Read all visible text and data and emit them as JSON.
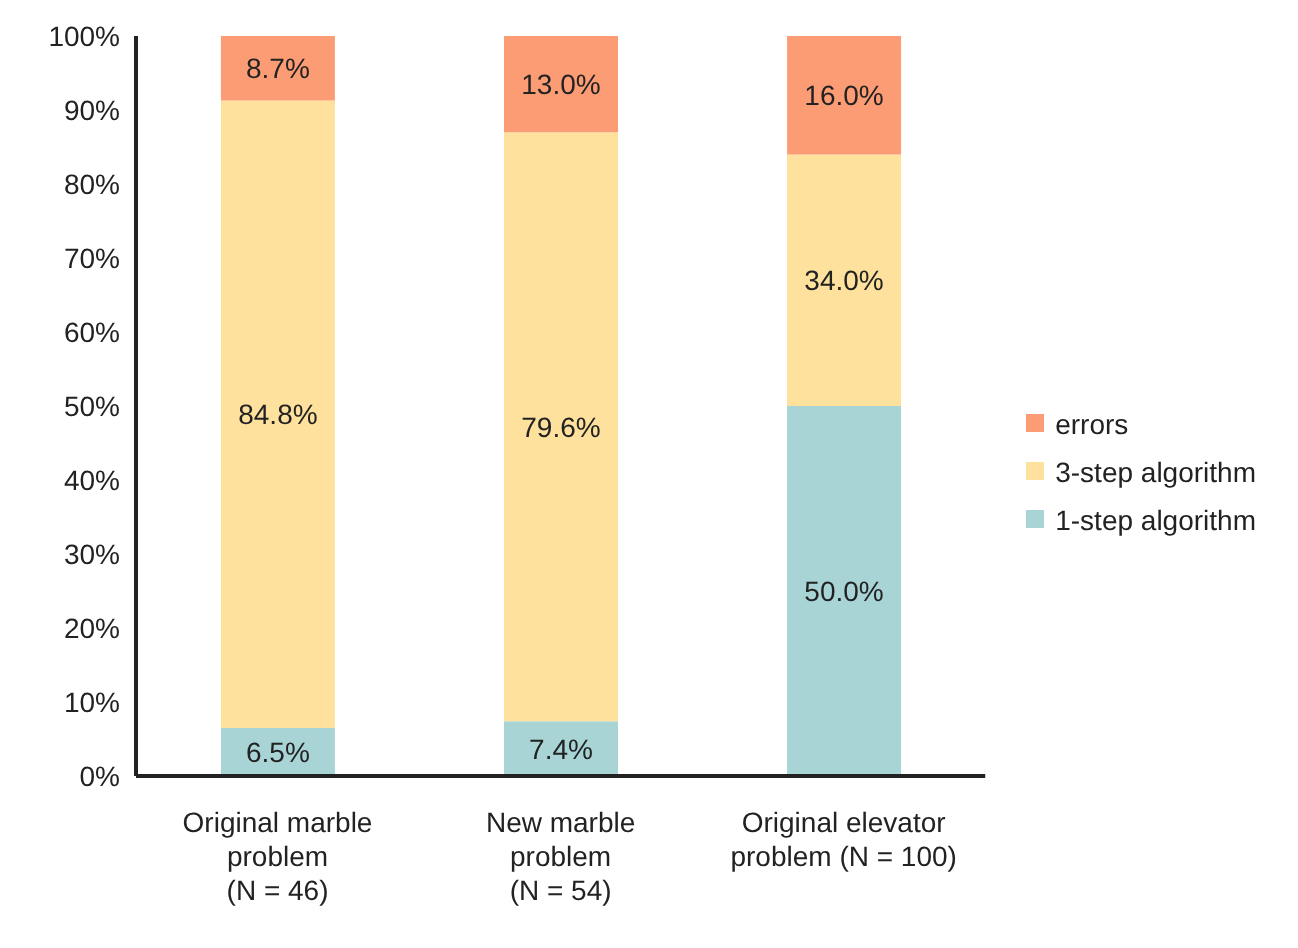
{
  "chart_data": {
    "type": "bar",
    "stacked": true,
    "categories": [
      "Original marble\nproblem\n(N = 46)",
      "New marble\nproblem\n(N = 54)",
      "Original elevator\nproblem (N = 100)"
    ],
    "series": [
      {
        "name": "1-step algorithm",
        "color": "#a8d4d6",
        "values": [
          6.5,
          7.4,
          50.0
        ],
        "value_labels": [
          "6.5%",
          "7.4%",
          "50.0%"
        ]
      },
      {
        "name": "3-step algorithm",
        "color": "#fde19c",
        "values": [
          84.8,
          79.6,
          34.0
        ],
        "value_labels": [
          "84.8%",
          "79.6%",
          "34.0%"
        ]
      },
      {
        "name": "errors",
        "color": "#fc9c74",
        "values": [
          8.7,
          13.0,
          16.0
        ],
        "value_labels": [
          "8.7%",
          "13.0%",
          "16.0%"
        ]
      }
    ],
    "ylim": [
      0,
      100
    ],
    "yticks": [
      {
        "value": 0,
        "label": "0%"
      },
      {
        "value": 10,
        "label": "10%"
      },
      {
        "value": 20,
        "label": "20%"
      },
      {
        "value": 30,
        "label": "30%"
      },
      {
        "value": 40,
        "label": "40%"
      },
      {
        "value": 50,
        "label": "50%"
      },
      {
        "value": 60,
        "label": "60%"
      },
      {
        "value": 70,
        "label": "70%"
      },
      {
        "value": 80,
        "label": "80%"
      },
      {
        "value": 90,
        "label": "90%"
      },
      {
        "value": 100,
        "label": "100%"
      }
    ],
    "grid": false,
    "legend": "right"
  }
}
